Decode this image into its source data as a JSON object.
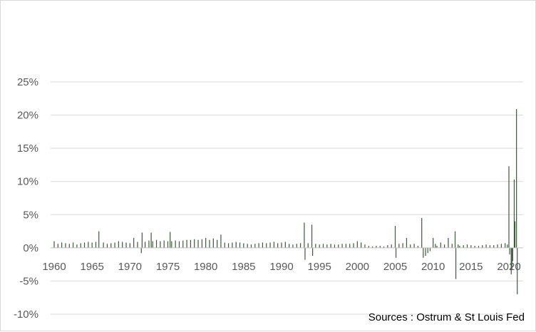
{
  "chart_data": {
    "type": "bar",
    "title": "",
    "xlabel": "",
    "ylabel": "",
    "x_range": [
      1960,
      2021.5
    ],
    "ylim": [
      -10,
      25
    ],
    "y_ticks": [
      -10,
      -5,
      0,
      5,
      10,
      15,
      20,
      25
    ],
    "y_tick_labels": [
      "-10%",
      "-5%",
      "0%",
      "5%",
      "10%",
      "15%",
      "20%",
      "25%"
    ],
    "x_ticks": [
      1960,
      1965,
      1970,
      1975,
      1980,
      1985,
      1990,
      1995,
      2000,
      2005,
      2010,
      2015,
      2020
    ],
    "x_tick_labels": [
      "1960",
      "1965",
      "1970",
      "1975",
      "1980",
      "1985",
      "1990",
      "1995",
      "2000",
      "2005",
      "2010",
      "2015",
      "2020"
    ],
    "grid": true,
    "legend": "none",
    "bar_color": "#3d5a3b",
    "baseline_color": "#c0c0c0",
    "grid_color": "#d9d9d9",
    "source": "Sources : Ostrum & St Louis Fed",
    "series": [
      {
        "values": [
          [
            1960.0,
            1.0
          ],
          [
            1960.5,
            0.6
          ],
          [
            1961.0,
            0.8
          ],
          [
            1961.5,
            0.7
          ],
          [
            1962.0,
            0.6
          ],
          [
            1962.5,
            0.8
          ],
          [
            1963.0,
            0.5
          ],
          [
            1963.5,
            0.7
          ],
          [
            1964.0,
            0.8
          ],
          [
            1964.5,
            0.9
          ],
          [
            1965.0,
            0.8
          ],
          [
            1965.5,
            0.9
          ],
          [
            1965.9,
            2.5
          ],
          [
            1966.5,
            0.8
          ],
          [
            1967.0,
            0.6
          ],
          [
            1967.5,
            0.7
          ],
          [
            1968.0,
            0.8
          ],
          [
            1968.5,
            1.0
          ],
          [
            1969.0,
            0.9
          ],
          [
            1969.5,
            0.8
          ],
          [
            1970.0,
            0.7
          ],
          [
            1970.5,
            1.5
          ],
          [
            1971.0,
            0.9
          ],
          [
            1971.5,
            -0.8
          ],
          [
            1971.6,
            2.3
          ],
          [
            1972.0,
            0.9
          ],
          [
            1972.5,
            1.1
          ],
          [
            1972.8,
            2.3
          ],
          [
            1973.0,
            1.0
          ],
          [
            1973.5,
            1.2
          ],
          [
            1974.0,
            1.0
          ],
          [
            1974.5,
            1.1
          ],
          [
            1975.0,
            1.0
          ],
          [
            1975.3,
            2.4
          ],
          [
            1975.5,
            1.0
          ],
          [
            1976.0,
            1.1
          ],
          [
            1976.5,
            1.0
          ],
          [
            1977.0,
            1.1
          ],
          [
            1977.5,
            1.2
          ],
          [
            1978.0,
            1.2
          ],
          [
            1978.5,
            1.3
          ],
          [
            1979.0,
            1.2
          ],
          [
            1979.5,
            1.3
          ],
          [
            1980.0,
            1.5
          ],
          [
            1980.5,
            1.2
          ],
          [
            1981.0,
            1.4
          ],
          [
            1981.5,
            1.2
          ],
          [
            1982.0,
            2.0
          ],
          [
            1982.5,
            0.8
          ],
          [
            1983.0,
            0.7
          ],
          [
            1983.5,
            0.8
          ],
          [
            1984.0,
            0.9
          ],
          [
            1984.5,
            0.8
          ],
          [
            1985.0,
            0.7
          ],
          [
            1985.5,
            0.6
          ],
          [
            1986.0,
            0.5
          ],
          [
            1986.5,
            0.6
          ],
          [
            1987.0,
            0.7
          ],
          [
            1987.5,
            0.8
          ],
          [
            1988.0,
            0.7
          ],
          [
            1988.5,
            0.8
          ],
          [
            1989.0,
            0.9
          ],
          [
            1989.5,
            0.7
          ],
          [
            1990.0,
            0.8
          ],
          [
            1990.5,
            0.9
          ],
          [
            1991.0,
            0.6
          ],
          [
            1991.5,
            0.5
          ],
          [
            1992.0,
            0.6
          ],
          [
            1992.5,
            0.7
          ],
          [
            1993.0,
            3.8
          ],
          [
            1993.1,
            -1.8
          ],
          [
            1993.5,
            0.7
          ],
          [
            1994.0,
            3.5
          ],
          [
            1994.1,
            -1.2
          ],
          [
            1994.5,
            0.6
          ],
          [
            1995.0,
            0.5
          ],
          [
            1995.5,
            0.6
          ],
          [
            1996.0,
            0.5
          ],
          [
            1996.5,
            0.6
          ],
          [
            1997.0,
            0.5
          ],
          [
            1997.5,
            0.5
          ],
          [
            1998.0,
            0.6
          ],
          [
            1998.5,
            0.6
          ],
          [
            1999.0,
            0.6
          ],
          [
            1999.5,
            0.7
          ],
          [
            2000.0,
            1.0
          ],
          [
            2000.5,
            0.8
          ],
          [
            2001.0,
            0.5
          ],
          [
            2001.5,
            0.3
          ],
          [
            2002.0,
            0.2
          ],
          [
            2002.5,
            0.3
          ],
          [
            2003.0,
            0.3
          ],
          [
            2003.5,
            0.2
          ],
          [
            2004.0,
            0.4
          ],
          [
            2004.5,
            0.5
          ],
          [
            2005.0,
            3.3
          ],
          [
            2005.1,
            -1.5
          ],
          [
            2005.5,
            0.6
          ],
          [
            2006.0,
            0.7
          ],
          [
            2006.5,
            1.5
          ],
          [
            2007.0,
            0.5
          ],
          [
            2007.5,
            0.6
          ],
          [
            2008.0,
            0.3
          ],
          [
            2008.5,
            4.5
          ],
          [
            2008.7,
            -1.5
          ],
          [
            2009.0,
            -1.2
          ],
          [
            2009.3,
            -0.8
          ],
          [
            2009.6,
            -0.5
          ],
          [
            2010.0,
            1.5
          ],
          [
            2010.3,
            0.6
          ],
          [
            2010.5,
            0.3
          ],
          [
            2011.0,
            0.8
          ],
          [
            2011.5,
            0.5
          ],
          [
            2012.0,
            1.5
          ],
          [
            2012.5,
            0.6
          ],
          [
            2012.9,
            2.5
          ],
          [
            2013.0,
            -4.7
          ],
          [
            2013.3,
            0.5
          ],
          [
            2013.5,
            0.3
          ],
          [
            2014.0,
            0.4
          ],
          [
            2014.5,
            0.5
          ],
          [
            2015.0,
            0.4
          ],
          [
            2015.5,
            0.3
          ],
          [
            2016.0,
            0.3
          ],
          [
            2016.5,
            0.4
          ],
          [
            2017.0,
            0.5
          ],
          [
            2017.5,
            0.4
          ],
          [
            2018.0,
            0.4
          ],
          [
            2018.5,
            0.5
          ],
          [
            2019.0,
            0.6
          ],
          [
            2019.5,
            0.7
          ],
          [
            2019.8,
            0.5
          ],
          [
            2020.0,
            12.3
          ],
          [
            2020.1,
            -1.0
          ],
          [
            2020.3,
            -4.0
          ],
          [
            2020.4,
            -3.2
          ],
          [
            2020.5,
            -2.0
          ],
          [
            2020.7,
            10.3
          ],
          [
            2020.8,
            4.0
          ],
          [
            2021.0,
            20.9
          ],
          [
            2021.1,
            -7.0
          ]
        ]
      }
    ]
  }
}
